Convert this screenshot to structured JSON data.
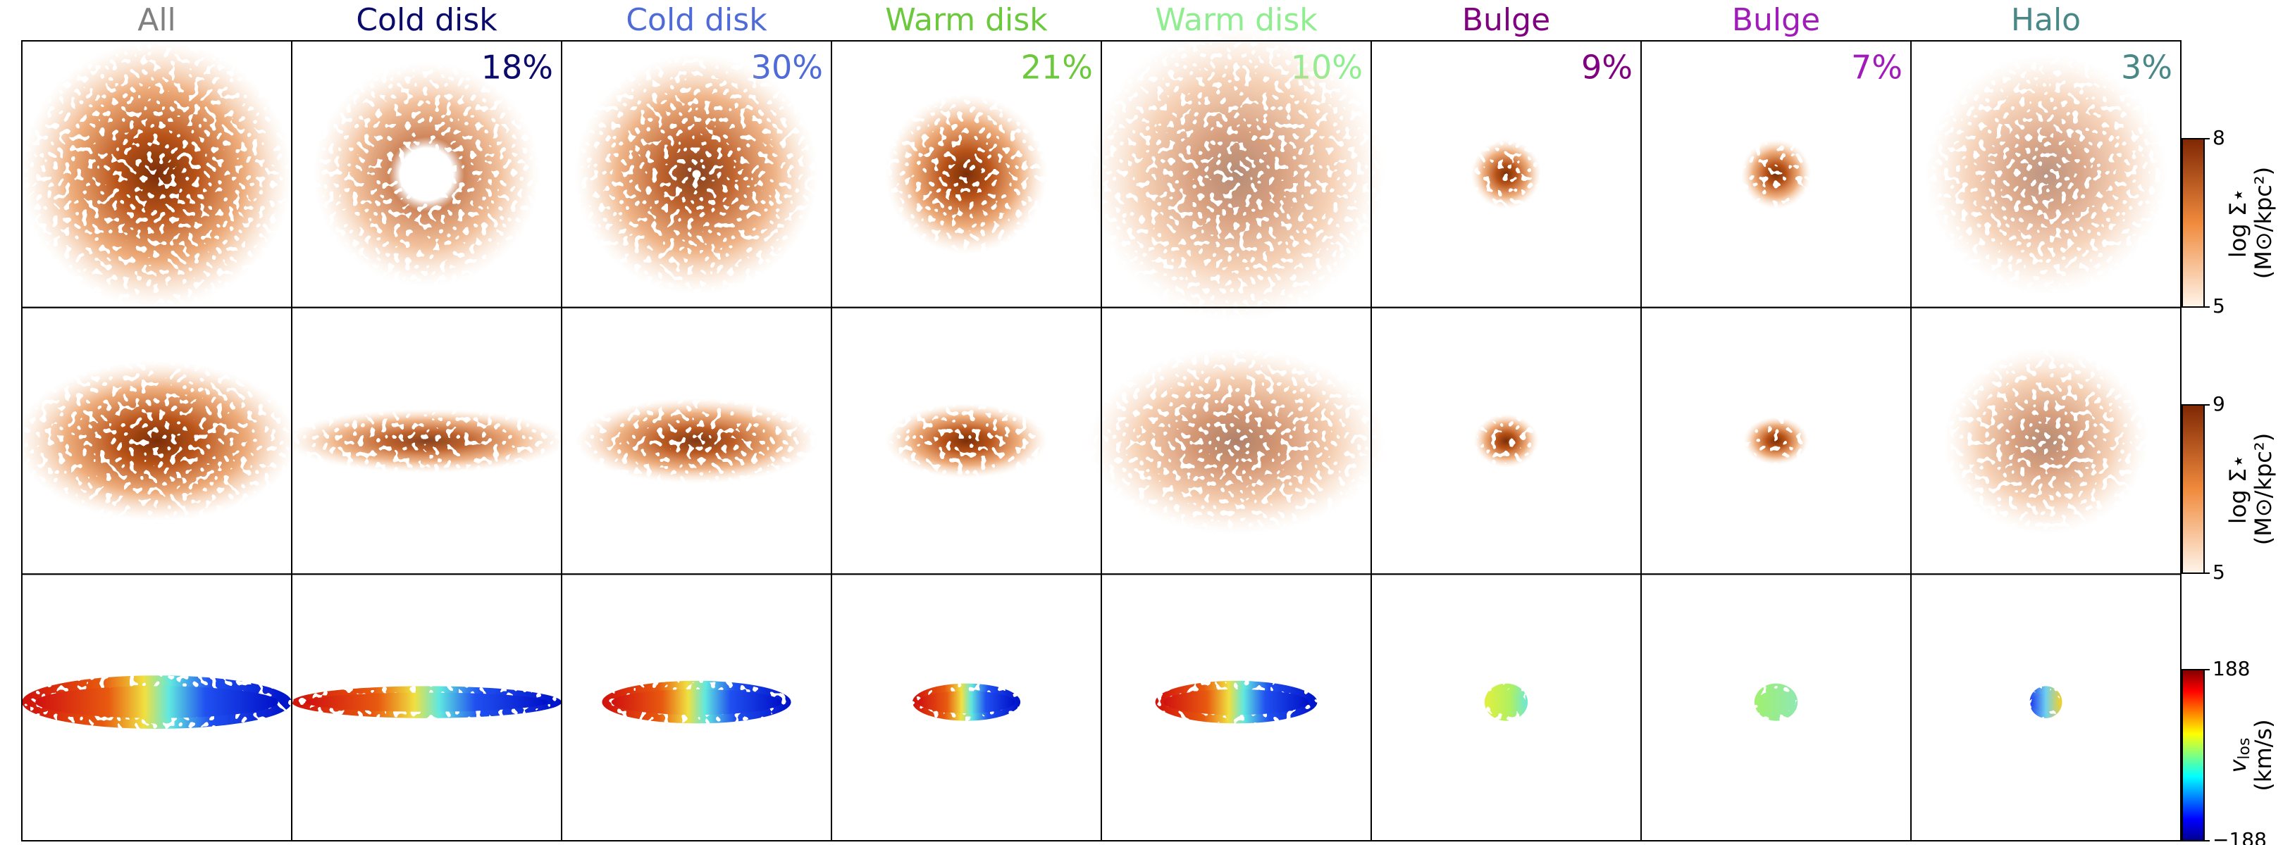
{
  "columns": [
    {
      "title": "All",
      "color": "#808080"
    },
    {
      "title": "Cold disk",
      "color": "#0b0b6b",
      "fraction": 18,
      "fraction_label": "18%"
    },
    {
      "title": "Cold disk",
      "color": "#4f6bd8",
      "fraction": 30,
      "fraction_label": "30%"
    },
    {
      "title": "Warm disk",
      "color": "#6cc83c",
      "fraction": 21,
      "fraction_label": "21%"
    },
    {
      "title": "Warm disk",
      "color": "#90ee90",
      "fraction": 10,
      "fraction_label": "10%"
    },
    {
      "title": "Bulge",
      "color": "#800080",
      "fraction": 9,
      "fraction_label": "9%"
    },
    {
      "title": "Bulge",
      "color": "#a01cb8",
      "fraction": 7,
      "fraction_label": "7%"
    },
    {
      "title": "Halo",
      "color": "#4a8888",
      "fraction": 3,
      "fraction_label": "3%"
    }
  ],
  "colorbars": [
    {
      "label": [
        "log Σ⋆",
        "(M⊙/kpc²)"
      ],
      "lim": [
        5,
        8
      ],
      "ticks": [
        5,
        8
      ],
      "colormap": "Oranges"
    },
    {
      "label": [
        "log Σ⋆",
        "(M⊙/kpc²)"
      ],
      "lim": [
        5,
        9
      ],
      "ticks": [
        5,
        9
      ],
      "colormap": "Oranges"
    },
    {
      "label_symbol": "v",
      "label_subscript": "los",
      "label_unit": "(km/s)",
      "lim": [
        -188,
        188
      ],
      "ticks": [
        {
          "value": -188,
          "label": "−188"
        },
        188
      ],
      "colormap": "jet"
    }
  ]
}
